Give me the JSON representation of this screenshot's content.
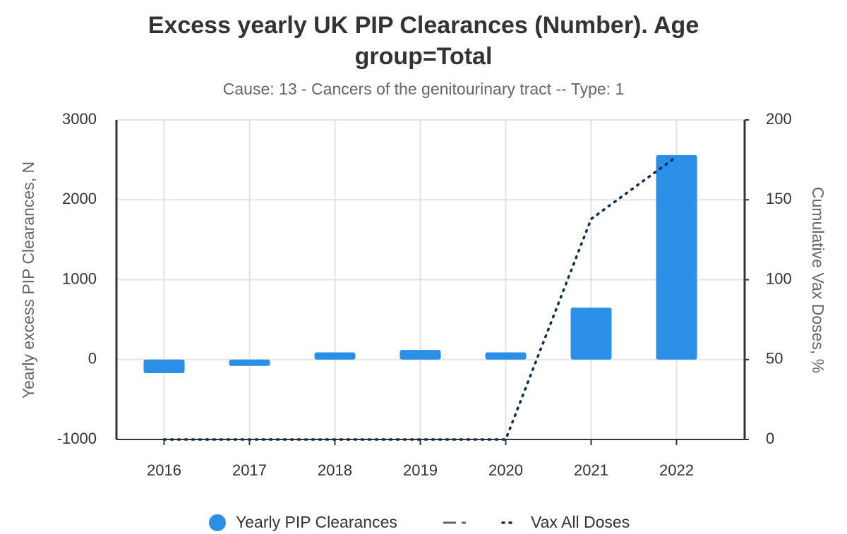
{
  "chart_data": {
    "type": "bar",
    "title": [
      "Excess yearly UK PIP Clearances (Number). Age",
      "group=Total"
    ],
    "subtitle": "Cause: 13 - Cancers of the genitourinary tract -- Type: 1",
    "y_label": "Yearly excess PIP Clearances, N",
    "y2_label": "Cumulative Vax Doses, %",
    "categories": [
      "2016",
      "2017",
      "2018",
      "2019",
      "2020",
      "2021",
      "2022"
    ],
    "series": [
      {
        "name": "Yearly PIP Clearances",
        "type": "bar",
        "color": "#2b8fe8",
        "values": [
          -170,
          -80,
          90,
          120,
          90,
          650,
          2560
        ]
      },
      {
        "name": "Vax All Doses",
        "type": "line",
        "axis": "y2",
        "color": "#0d2c4f",
        "values": [
          0,
          0,
          0,
          0,
          0,
          138,
          177
        ]
      }
    ],
    "ylim": [
      -1000,
      3000
    ],
    "yticks": [
      -1000,
      0,
      1000,
      2000,
      3000
    ],
    "y2lim": [
      0,
      200
    ],
    "y2ticks": [
      0,
      50,
      100,
      150,
      200
    ],
    "grid": true
  }
}
